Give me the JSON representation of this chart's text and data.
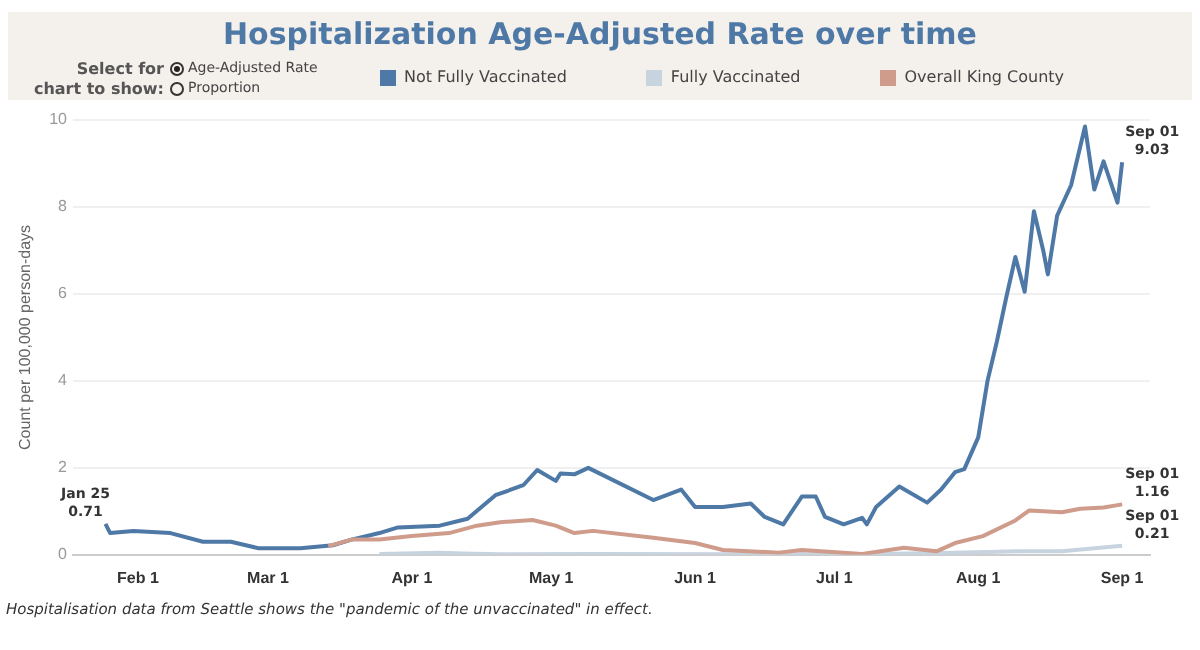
{
  "chart_data": {
    "type": "line",
    "title": "Hospitalization Age-Adjusted Rate over time",
    "ylabel": "Count per 100,000 person-days",
    "annotations": [
      "Select for chart to show:",
      "Age-Adjusted Rate",
      "Proportion",
      {
        "text": "Jan 25\n0.71",
        "x": "--01-25",
        "y": 0.71
      },
      {
        "text": "Sep 01\n9.03",
        "x": "--09-01",
        "y": 9.03
      },
      {
        "text": "Sep 01\n1.16",
        "x": "--09-01",
        "y": 1.16
      },
      {
        "text": "Sep 01\n0.21",
        "x": "--09-01",
        "y": 0.21
      },
      "Hospitalisation data from Seattle shows the \"pandemic of the unvaccinated\" in effect."
    ],
    "xlim": [
      "--01-18",
      "--09-07"
    ],
    "ylim": [
      0,
      10
    ],
    "xticks": [
      {
        "value": "--02-01",
        "label": "Feb 1"
      },
      {
        "value": "--03-01",
        "label": "Mar 1"
      },
      {
        "value": "--04-01",
        "label": "Apr 1"
      },
      {
        "value": "--05-01",
        "label": "May 1"
      },
      {
        "value": "--06-01",
        "label": "Jun 1"
      },
      {
        "value": "--07-01",
        "label": "Jul 1"
      },
      {
        "value": "--08-01",
        "label": "Aug 1"
      },
      {
        "value": "--09-01",
        "label": "Sep 1"
      }
    ],
    "yticks": [
      0,
      2,
      4,
      6,
      8,
      10
    ],
    "grid": "y",
    "legend": "top",
    "marker": "none",
    "line_style": "solid",
    "series": [
      {
        "name": "Not Fully Vaccinated",
        "color": "#4e79a7",
        "x": [
          "--01-25",
          "--01-26",
          "--01-31",
          "--02-08",
          "--02-15",
          "--02-21",
          "--02-27",
          "--03-08",
          "--03-15",
          "--03-19",
          "--03-25",
          "--03-29",
          "--04-07",
          "--04-13",
          "--04-19",
          "--04-25",
          "--04-28",
          "--05-02",
          "--05-03",
          "--05-06",
          "--05-09",
          "--05-23",
          "--05-29",
          "--06-01",
          "--06-07",
          "--06-13",
          "--06-16",
          "--06-20",
          "--06-24",
          "--06-27",
          "--06-29",
          "--07-03",
          "--07-07",
          "--07-08",
          "--07-10",
          "--07-15",
          "--07-21",
          "--07-24",
          "--07-27",
          "--07-29",
          "--08-01",
          "--08-03",
          "--08-05",
          "--08-07",
          "--08-09",
          "--08-11",
          "--08-13",
          "--08-15",
          "--08-16",
          "--08-18",
          "--08-21",
          "--08-24",
          "--08-26",
          "--08-28",
          "--08-31",
          "--09-01"
        ],
        "values": [
          0.71,
          0.5,
          0.55,
          0.5,
          0.3,
          0.3,
          0.15,
          0.15,
          0.22,
          0.35,
          0.5,
          0.63,
          0.67,
          0.83,
          1.37,
          1.6,
          1.95,
          1.7,
          1.87,
          1.85,
          2.0,
          1.26,
          1.5,
          1.1,
          1.1,
          1.18,
          0.87,
          0.7,
          1.34,
          1.34,
          0.87,
          0.7,
          0.85,
          0.7,
          1.1,
          1.57,
          1.2,
          1.5,
          1.9,
          1.97,
          2.7,
          4.0,
          4.9,
          5.9,
          6.85,
          6.05,
          7.9,
          7.0,
          6.45,
          7.8,
          8.5,
          9.85,
          8.4,
          9.05,
          8.1,
          9.03
        ]
      },
      {
        "name": "Fully Vaccinated",
        "color": "#c8d3e0",
        "x": [
          "--03-25",
          "--04-07",
          "--04-12",
          "--04-20",
          "--05-10",
          "--06-10",
          "--07-10",
          "--07-27",
          "--08-10",
          "--08-19",
          "--09-01"
        ],
        "values": [
          0.02,
          0.05,
          0.03,
          0.01,
          0.02,
          0.01,
          0.02,
          0.05,
          0.08,
          0.08,
          0.21
        ]
      },
      {
        "name": "Overall King County",
        "color": "#cf9b8b",
        "x": [
          "--03-14",
          "--03-19",
          "--03-25",
          "--04-01",
          "--04-09",
          "--04-15",
          "--04-20",
          "--04-27",
          "--05-02",
          "--05-06",
          "--05-10",
          "--05-23",
          "--06-01",
          "--06-07",
          "--06-19",
          "--06-24",
          "--07-07",
          "--07-16",
          "--07-23",
          "--07-27",
          "--08-02",
          "--08-09",
          "--08-12",
          "--08-19",
          "--08-23",
          "--08-28",
          "--09-01"
        ],
        "values": [
          0.2,
          0.35,
          0.35,
          0.43,
          0.5,
          0.67,
          0.75,
          0.8,
          0.67,
          0.5,
          0.55,
          0.39,
          0.27,
          0.11,
          0.05,
          0.11,
          0.02,
          0.16,
          0.08,
          0.27,
          0.43,
          0.79,
          1.02,
          0.98,
          1.06,
          1.09,
          1.16
        ]
      }
    ]
  }
}
